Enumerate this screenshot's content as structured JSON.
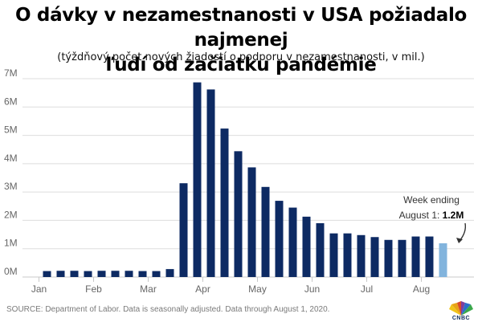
{
  "title": "O dávky v nezamestnanosti v USA požiadalo najmenej ľudí od začiatku pandémie",
  "title_line1": "O dávky v nezamestnanosti v USA požiadalo najmenej",
  "title_line2": "ľudí od začiatku pandémie",
  "subtitle": "(týždňový počet nových žiadostí o podporu v nezamestnanosti, v mil.)",
  "source": "SOURCE: Department of Labor. Data is seasonally adjusted. Data through August 1, 2020.",
  "logo_text": "CNBC",
  "annotation": {
    "line1": "Week ending",
    "line2_prefix": "August 1: ",
    "line2_value": "1.2M"
  },
  "colors": {
    "bar": "#0d2a63",
    "highlight_bar": "#82b4dd",
    "grid": "#dddddd",
    "axis_text": "#666666"
  },
  "chart_data": {
    "type": "bar",
    "title": "",
    "xlabel": "",
    "ylabel": "",
    "ylim": [
      0,
      7
    ],
    "yticks": [
      0,
      1,
      2,
      3,
      4,
      5,
      6,
      7
    ],
    "ytick_labels": [
      "0M",
      "1M",
      "2M",
      "3M",
      "4M",
      "5M",
      "6M",
      "7M"
    ],
    "month_labels": [
      "Jan",
      "Feb",
      "Mar",
      "Apr",
      "May",
      "Jun",
      "Jul",
      "Aug"
    ],
    "month_positions": [
      0,
      4,
      8,
      12,
      16,
      20,
      24,
      28
    ],
    "grid": true,
    "values": [
      0.21,
      0.22,
      0.22,
      0.21,
      0.22,
      0.22,
      0.22,
      0.21,
      0.21,
      0.28,
      3.31,
      6.87,
      6.62,
      5.24,
      4.44,
      3.87,
      3.18,
      2.69,
      2.45,
      2.13,
      1.9,
      1.54,
      1.54,
      1.48,
      1.41,
      1.31,
      1.31,
      1.43,
      1.43,
      1.19
    ],
    "highlight_index": 29
  }
}
